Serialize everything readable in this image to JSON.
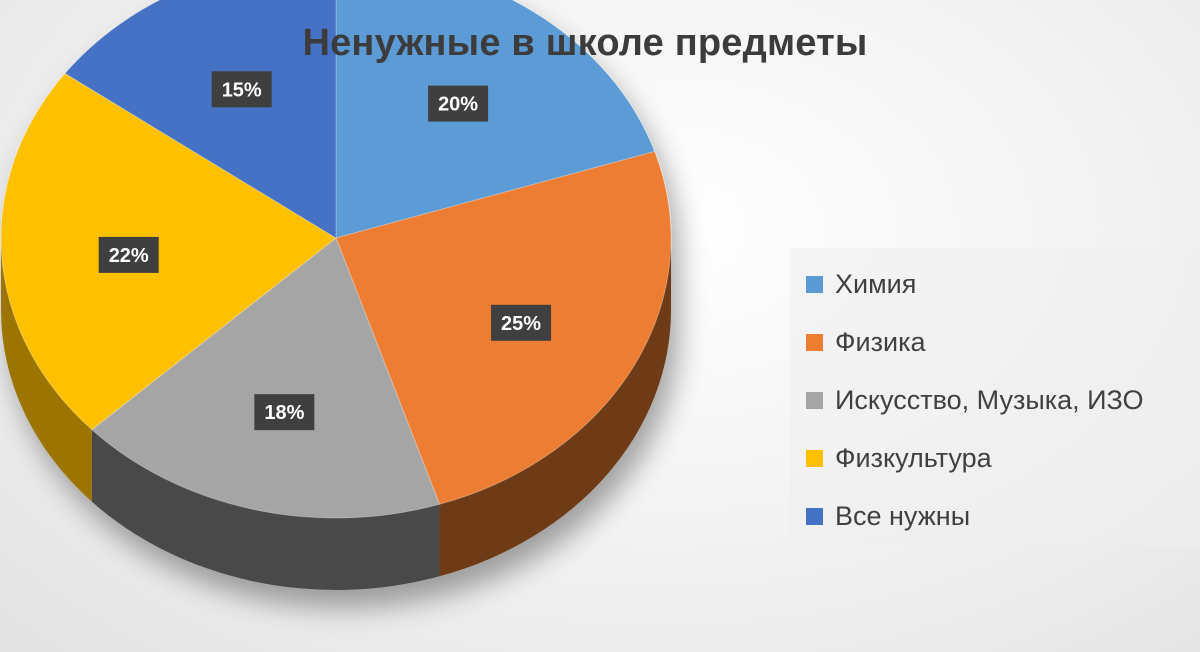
{
  "chart_data": {
    "type": "pie",
    "title": "Ненужные в школе предметы",
    "slices": [
      {
        "label": "Химия",
        "value": 20,
        "value_label": "20%",
        "color": "#5B9BD5",
        "side_color": "#2E5F8F"
      },
      {
        "label": "Физика",
        "value": 25,
        "value_label": "25%",
        "color": "#ED7D31",
        "side_color": "#6E3A12"
      },
      {
        "label": "Искусство, Музыка, ИЗО",
        "value": 18,
        "value_label": "18%",
        "color": "#A5A5A5",
        "side_color": "#4A4A4A"
      },
      {
        "label": "Физкультура",
        "value": 22,
        "value_label": "22%",
        "color": "#FFC000",
        "side_color": "#9C7400"
      },
      {
        "label": "Все нужны",
        "value": 15,
        "value_label": "15%",
        "color": "#4472C4",
        "side_color": "#243F72"
      }
    ],
    "data_label_style": {
      "background": "#3f3f3f",
      "text_color": "#ffffff"
    },
    "legend_position": "right",
    "three_d": true
  }
}
